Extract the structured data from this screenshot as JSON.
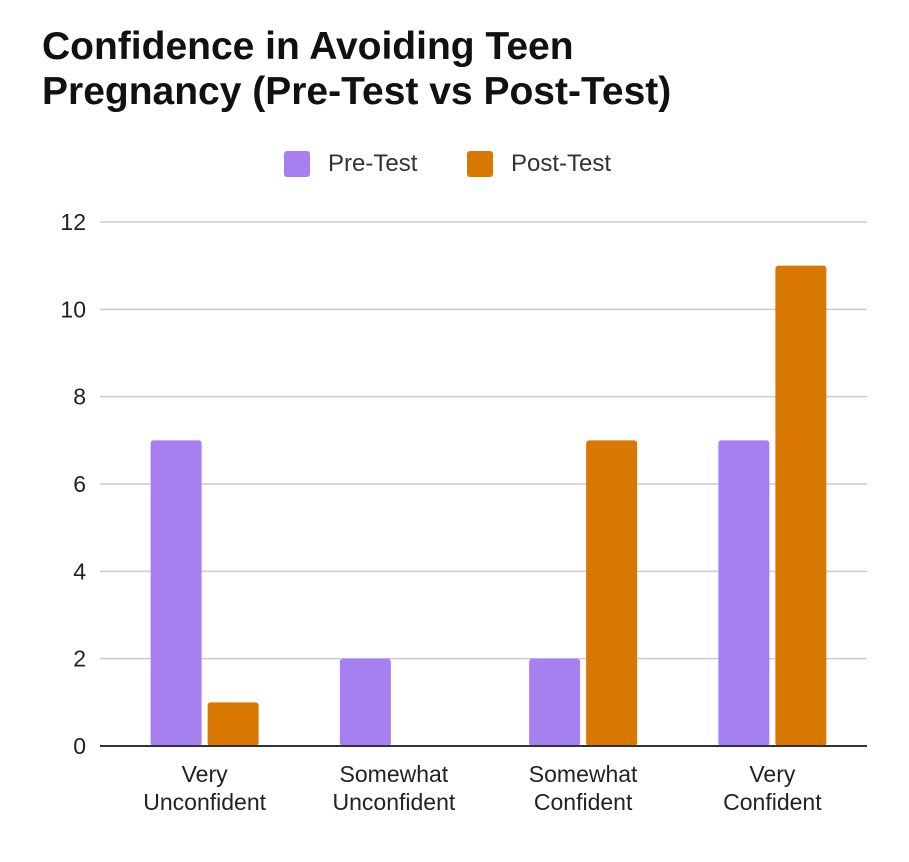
{
  "chart_data": {
    "type": "bar",
    "title_lines": [
      "Confidence in Avoiding Teen",
      "Pregnancy (Pre-Test vs Post-Test)"
    ],
    "categories": [
      [
        "Very",
        "Unconfident"
      ],
      [
        "Somewhat",
        "Unconfident"
      ],
      [
        "Somewhat",
        "Confident"
      ],
      [
        "Very",
        "Confident"
      ]
    ],
    "series": [
      {
        "name": "Pre-Test",
        "color": "#a67ff0",
        "values": [
          7,
          2,
          2,
          7
        ]
      },
      {
        "name": "Post-Test",
        "color": "#d97800",
        "values": [
          1,
          0,
          7,
          11
        ]
      }
    ],
    "y_ticks": [
      "0",
      "2",
      "4",
      "6",
      "8",
      "10",
      "12"
    ],
    "ylim": [
      0,
      12
    ],
    "xlabel": "",
    "ylabel": "",
    "legend_position": "top-center",
    "grid": true
  }
}
